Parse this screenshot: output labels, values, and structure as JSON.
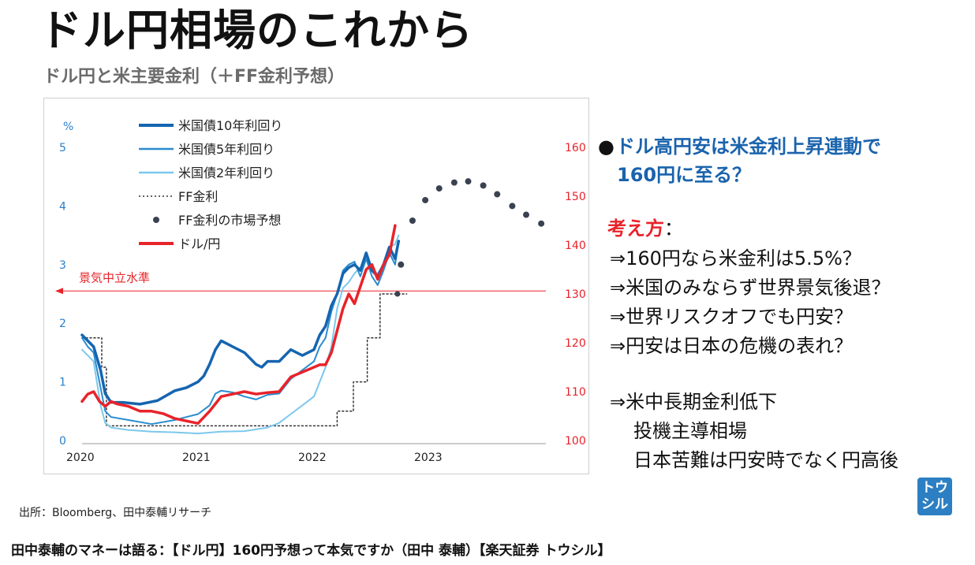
{
  "page": {
    "title": "ドル円相場のこれから",
    "subtitle": "ドル円と米主要金利（＋FF金利予想）",
    "bullet_line1": "ドル高円安は米金利上昇連動で",
    "bullet_line2": "160円に至る？",
    "kangae_label": "考え方",
    "kangae_colon": "：",
    "points": [
      "⇒160円なら米金利は5.5%？",
      "⇒米国のみならず世界景気後退？",
      "⇒世界リスクオフでも円安？",
      "⇒円安は日本の危機の表れ？"
    ],
    "points2": [
      "⇒米中長期金利低下",
      "投機主導相場",
      "日本苦難は円安時でなく円高後"
    ],
    "source": "出所：Bloomberg、田中泰輔リサーチ",
    "footer": "田中泰輔のマネーは語る：【ドル円】160円予想って本気ですか（田中 泰輔）【楽天証券 トウシル】",
    "logo_line1": "トウ",
    "logo_line2": "シル"
  },
  "colors": {
    "us10y": "#1565b0",
    "us5y": "#2a8bd0",
    "us2y": "#7cc8ec",
    "ff": "#333333",
    "ff_forecast": "#3a4150",
    "usdjpy": "#e8232a",
    "neutral": "#e8232a"
  },
  "chart_data": {
    "type": "line",
    "left_axis": {
      "unit": "%",
      "ylim": [
        0,
        5
      ],
      "ticks": [
        0,
        1,
        2,
        3,
        4,
        5
      ]
    },
    "right_axis": {
      "ylim": [
        100,
        160
      ],
      "ticks": [
        100,
        110,
        120,
        130,
        140,
        150,
        160
      ]
    },
    "x_axis": {
      "xlim": [
        2020,
        2024
      ],
      "ticks": [
        "2020",
        "2021",
        "2022",
        "2023"
      ]
    },
    "legend": [
      "米国債10年利回り",
      "米国債5年利回り",
      "米国債2年利回り",
      "FF金利",
      "FF金利の市場予想",
      "ドル/円"
    ],
    "annotation": {
      "text": "景気中立水準",
      "y": 2.55
    },
    "series": [
      {
        "name": "米国債10年利回り",
        "axis": "left",
        "x": [
          2020.0,
          2020.05,
          2020.1,
          2020.16,
          2020.2,
          2020.25,
          2020.35,
          2020.5,
          2020.65,
          2020.8,
          2020.9,
          2021.0,
          2021.05,
          2021.1,
          2021.15,
          2021.2,
          2021.25,
          2021.3,
          2021.4,
          2021.5,
          2021.55,
          2021.6,
          2021.7,
          2021.8,
          2021.9,
          2022.0,
          2022.05,
          2022.1,
          2022.15,
          2022.2,
          2022.25,
          2022.3,
          2022.35,
          2022.4,
          2022.45,
          2022.5,
          2022.55,
          2022.6,
          2022.65,
          2022.7,
          2022.73
        ],
        "y": [
          1.8,
          1.7,
          1.6,
          1.2,
          0.8,
          0.65,
          0.65,
          0.62,
          0.68,
          0.85,
          0.9,
          1.0,
          1.1,
          1.3,
          1.55,
          1.7,
          1.65,
          1.6,
          1.5,
          1.3,
          1.25,
          1.35,
          1.35,
          1.55,
          1.45,
          1.55,
          1.8,
          1.95,
          2.3,
          2.5,
          2.85,
          2.95,
          3.0,
          2.9,
          3.2,
          2.9,
          2.8,
          3.0,
          3.3,
          3.1,
          3.4
        ]
      },
      {
        "name": "米国債5年利回り",
        "axis": "left",
        "x": [
          2020.0,
          2020.05,
          2020.1,
          2020.16,
          2020.2,
          2020.25,
          2020.4,
          2020.6,
          2020.8,
          2020.9,
          2021.0,
          2021.1,
          2021.15,
          2021.2,
          2021.3,
          2021.4,
          2021.5,
          2021.6,
          2021.7,
          2021.8,
          2021.9,
          2022.0,
          2022.05,
          2022.1,
          2022.15,
          2022.2,
          2022.25,
          2022.3,
          2022.35,
          2022.4,
          2022.45,
          2022.5,
          2022.55,
          2022.6,
          2022.65,
          2022.7,
          2022.73
        ],
        "y": [
          1.75,
          1.6,
          1.5,
          0.9,
          0.5,
          0.4,
          0.35,
          0.28,
          0.35,
          0.4,
          0.45,
          0.6,
          0.8,
          0.85,
          0.82,
          0.75,
          0.7,
          0.78,
          0.8,
          1.05,
          1.2,
          1.35,
          1.6,
          1.75,
          2.2,
          2.5,
          2.9,
          3.0,
          3.05,
          2.8,
          3.1,
          2.8,
          2.65,
          2.9,
          3.2,
          3.0,
          3.4
        ]
      },
      {
        "name": "米国債2年利回り",
        "axis": "left",
        "x": [
          2020.0,
          2020.05,
          2020.1,
          2020.16,
          2020.2,
          2020.25,
          2020.4,
          2020.6,
          2020.8,
          2021.0,
          2021.2,
          2021.4,
          2021.6,
          2021.7,
          2021.8,
          2021.9,
          2022.0,
          2022.05,
          2022.1,
          2022.15,
          2022.2,
          2022.25,
          2022.3,
          2022.35,
          2022.4,
          2022.45,
          2022.5,
          2022.55,
          2022.6,
          2022.65,
          2022.7,
          2022.73
        ],
        "y": [
          1.55,
          1.45,
          1.35,
          0.6,
          0.3,
          0.22,
          0.18,
          0.15,
          0.14,
          0.12,
          0.15,
          0.16,
          0.22,
          0.3,
          0.45,
          0.6,
          0.75,
          1.0,
          1.25,
          1.6,
          2.25,
          2.6,
          2.7,
          2.85,
          2.95,
          3.1,
          2.9,
          2.85,
          3.0,
          3.3,
          3.35,
          3.5
        ]
      },
      {
        "name": "FF金利",
        "axis": "left",
        "x": [
          2020.0,
          2020.17,
          2020.17,
          2020.21,
          2020.21,
          2022.2,
          2022.2,
          2022.34,
          2022.34,
          2022.46,
          2022.46,
          2022.57,
          2022.57,
          2022.72,
          2022.72,
          2022.8
        ],
        "y": [
          1.75,
          1.75,
          1.25,
          1.25,
          0.25,
          0.25,
          0.5,
          0.5,
          1.0,
          1.0,
          1.75,
          1.75,
          2.5,
          2.5,
          2.5,
          2.5
        ]
      },
      {
        "name": "FF金利の市場予想",
        "axis": "left",
        "x": [
          2022.75,
          2022.85,
          2022.96,
          2023.08,
          2023.21,
          2023.33,
          2023.46,
          2023.58,
          2023.71,
          2023.83,
          2023.96
        ],
        "y": [
          3.0,
          3.75,
          4.1,
          4.3,
          4.4,
          4.42,
          4.35,
          4.2,
          4.0,
          3.85,
          3.7
        ]
      },
      {
        "name": "ドル/円",
        "axis": "right",
        "x": [
          2020.0,
          2020.05,
          2020.1,
          2020.15,
          2020.2,
          2020.25,
          2020.3,
          2020.4,
          2020.5,
          2020.6,
          2020.7,
          2020.8,
          2020.9,
          2021.0,
          2021.1,
          2021.2,
          2021.3,
          2021.4,
          2021.5,
          2021.6,
          2021.7,
          2021.8,
          2021.9,
          2022.0,
          2022.05,
          2022.1,
          2022.15,
          2022.2,
          2022.25,
          2022.3,
          2022.35,
          2022.4,
          2022.45,
          2022.5,
          2022.55,
          2022.6,
          2022.65,
          2022.7
        ],
        "y": [
          108,
          109.5,
          110,
          108,
          107,
          108,
          107.5,
          107,
          106,
          106,
          105.5,
          104.5,
          104,
          103.5,
          106,
          109,
          109.5,
          110,
          109.5,
          109.8,
          110,
          113,
          114,
          115,
          115.5,
          115.5,
          118,
          122.5,
          127,
          130,
          128,
          131.5,
          135,
          136,
          133,
          136,
          138,
          144
        ]
      }
    ]
  }
}
